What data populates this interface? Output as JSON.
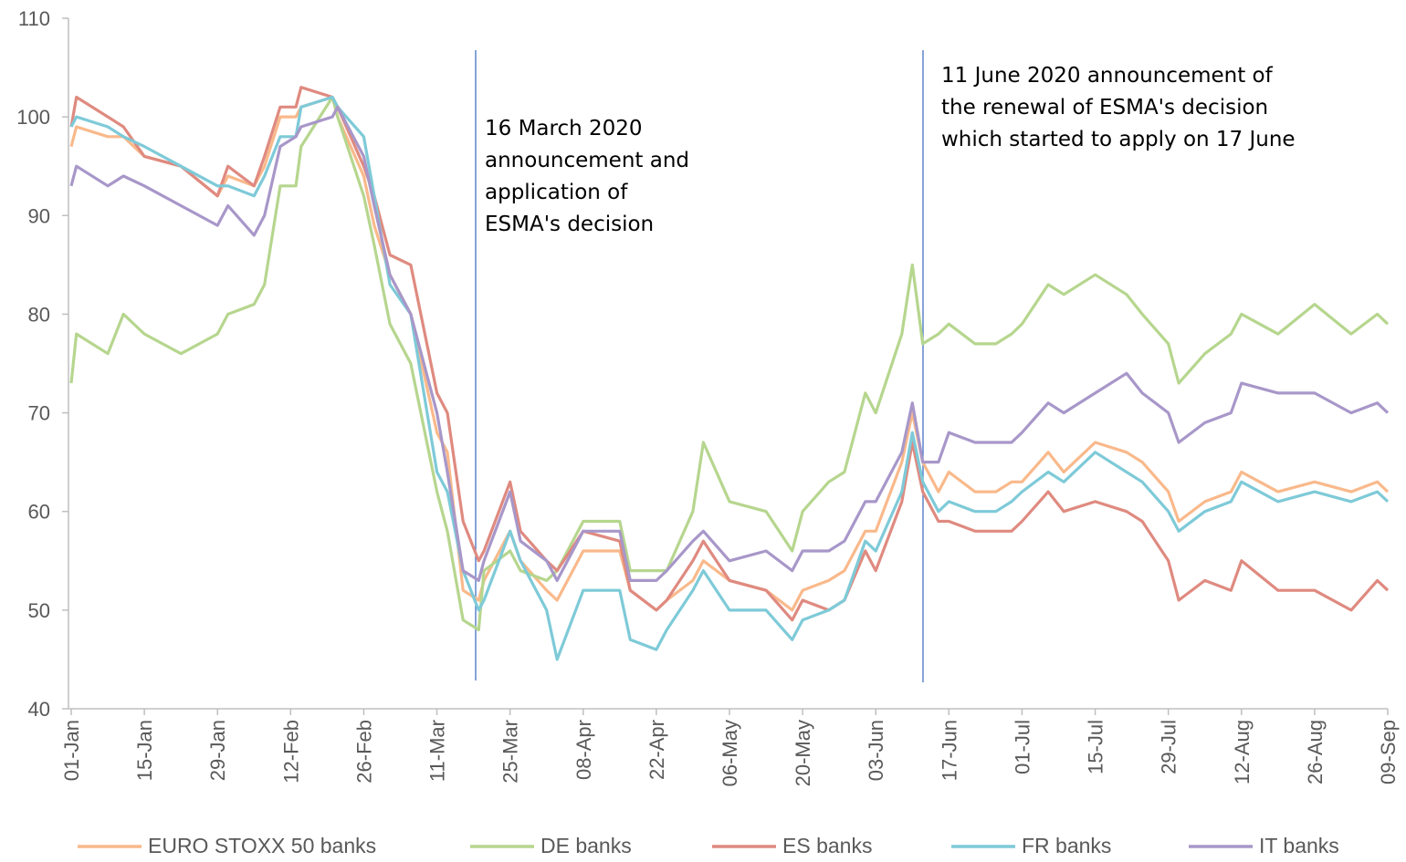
{
  "chart_data": {
    "type": "line",
    "x": [
      "01-Jan",
      "02-Jan",
      "08-Jan",
      "11-Jan",
      "15-Jan",
      "22-Jan",
      "29-Jan",
      "31-Jan",
      "05-Feb",
      "07-Feb",
      "10-Feb",
      "13-Feb",
      "14-Feb",
      "20-Feb",
      "21-Feb",
      "26-Feb",
      "28-Feb",
      "02-Mar",
      "06-Mar",
      "11-Mar",
      "13-Mar",
      "16-Mar",
      "19-Mar",
      "20-Mar",
      "25-Mar",
      "27-Mar",
      "01-Apr",
      "03-Apr",
      "08-Apr",
      "15-Apr",
      "17-Apr",
      "22-Apr",
      "24-Apr",
      "29-Apr",
      "01-May",
      "06-May",
      "13-May",
      "18-May",
      "20-May",
      "25-May",
      "28-May",
      "01-Jun",
      "03-Jun",
      "08-Jun",
      "10-Jun",
      "12-Jun",
      "15-Jun",
      "17-Jun",
      "22-Jun",
      "26-Jun",
      "29-Jun",
      "01-Jul",
      "06-Jul",
      "09-Jul",
      "15-Jul",
      "21-Jul",
      "24-Jul",
      "29-Jul",
      "31-Jul",
      "05-Aug",
      "10-Aug",
      "12-Aug",
      "19-Aug",
      "26-Aug",
      "02-Sep",
      "07-Sep",
      "09-Sep"
    ],
    "series": [
      {
        "name": "EURO STOXX 50 banks",
        "color": "#f9b98b",
        "values": [
          97,
          99,
          98,
          98,
          96,
          95,
          92,
          94,
          93,
          95,
          100,
          100,
          101,
          102,
          100,
          94,
          89,
          84,
          80,
          68,
          66,
          52,
          51,
          53,
          58,
          55,
          52,
          51,
          56,
          56,
          52,
          50,
          51,
          53,
          55,
          53,
          52,
          50,
          52,
          53,
          54,
          58,
          58,
          65,
          70,
          65,
          62,
          64,
          62,
          62,
          63,
          63,
          66,
          64,
          67,
          66,
          65,
          62,
          59,
          61,
          62,
          64,
          62,
          63,
          62,
          63,
          62
        ]
      },
      {
        "name": "DE banks",
        "color": "#b6d68e",
        "values": [
          73,
          78,
          76,
          80,
          78,
          76,
          78,
          80,
          81,
          83,
          93,
          93,
          97,
          102,
          100,
          92,
          87,
          79,
          75,
          62,
          58,
          49,
          48,
          54,
          56,
          54,
          53,
          54,
          59,
          59,
          54,
          54,
          54,
          60,
          67,
          61,
          60,
          56,
          60,
          63,
          64,
          72,
          70,
          78,
          85,
          77,
          78,
          79,
          77,
          77,
          78,
          79,
          83,
          82,
          84,
          82,
          80,
          77,
          73,
          76,
          78,
          80,
          78,
          81,
          78,
          80,
          79
        ]
      },
      {
        "name": "ES banks",
        "color": "#df8a80",
        "values": [
          99,
          102,
          100,
          99,
          96,
          95,
          92,
          95,
          93,
          96,
          101,
          101,
          103,
          102,
          101,
          95,
          92,
          86,
          85,
          72,
          70,
          59,
          55,
          56,
          63,
          58,
          55,
          54,
          58,
          57,
          52,
          50,
          51,
          55,
          57,
          53,
          52,
          49,
          51,
          50,
          51,
          56,
          54,
          61,
          67,
          62,
          59,
          59,
          58,
          58,
          58,
          59,
          62,
          60,
          61,
          60,
          59,
          55,
          51,
          53,
          52,
          55,
          52,
          52,
          50,
          53,
          52
        ]
      },
      {
        "name": "FR banks",
        "color": "#7ecad8",
        "values": [
          99,
          100,
          99,
          98,
          97,
          95,
          93,
          93,
          92,
          94,
          98,
          98,
          101,
          102,
          101,
          98,
          92,
          83,
          80,
          64,
          62,
          54,
          50,
          51,
          58,
          55,
          50,
          45,
          52,
          52,
          47,
          46,
          48,
          52,
          54,
          50,
          50,
          47,
          49,
          50,
          51,
          57,
          56,
          62,
          68,
          63,
          60,
          61,
          60,
          60,
          61,
          62,
          64,
          63,
          66,
          64,
          63,
          60,
          58,
          60,
          61,
          63,
          61,
          62,
          61,
          62,
          61
        ]
      },
      {
        "name": "IT banks",
        "color": "#a897c9",
        "values": [
          93,
          95,
          93,
          94,
          93,
          91,
          89,
          91,
          88,
          90,
          97,
          98,
          99,
          100,
          101,
          96,
          91,
          84,
          80,
          70,
          64,
          54,
          53,
          55,
          62,
          57,
          55,
          53,
          58,
          58,
          53,
          53,
          54,
          57,
          58,
          55,
          56,
          54,
          56,
          56,
          57,
          61,
          61,
          66,
          71,
          65,
          65,
          68,
          67,
          67,
          67,
          68,
          71,
          70,
          72,
          74,
          72,
          70,
          67,
          69,
          70,
          73,
          72,
          72,
          70,
          71,
          70
        ]
      }
    ],
    "xlim": [
      "01-Jan",
      "09-Sep"
    ],
    "xticks": [
      "01-Jan",
      "15-Jan",
      "29-Jan",
      "12-Feb",
      "26-Feb",
      "11-Mar",
      "25-Mar",
      "08-Apr",
      "22-Apr",
      "06-May",
      "20-May",
      "03-Jun",
      "17-Jun",
      "01-Jul",
      "15-Jul",
      "29-Jul",
      "12-Aug",
      "26-Aug",
      "09-Sep"
    ],
    "ylim": [
      40,
      110
    ],
    "yticks": [
      40,
      50,
      60,
      70,
      80,
      90,
      100,
      110
    ],
    "grid": false,
    "legend": "bottom",
    "annotations": [
      {
        "lines": [
          "16 March 2020",
          "announcement  and",
          "application of",
          "ESMA's decision"
        ]
      },
      {
        "lines": [
          "11 June 2020 announcement  of",
          "the renewal of ESMA's decision",
          "which started to apply on 17 June"
        ]
      }
    ]
  }
}
